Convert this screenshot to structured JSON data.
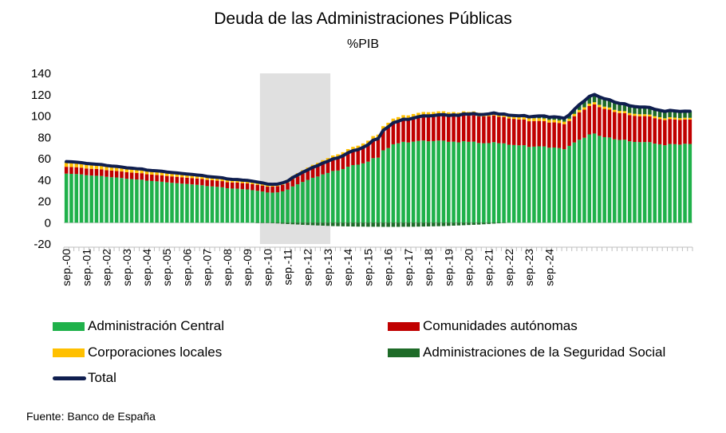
{
  "chart_data": {
    "type": "bar",
    "subtype": "stacked-bar-with-line",
    "title": "Deuda de las Administraciones Públicas",
    "subtitle": "%PIB",
    "ylim": [
      -20,
      140
    ],
    "yticks": [
      -20,
      0,
      20,
      40,
      60,
      80,
      100,
      120,
      140
    ],
    "x_tick_labels": [
      "sep.-00",
      "sep.-01",
      "sep.-02",
      "sep.-03",
      "sep.-04",
      "sep.-05",
      "sep.-06",
      "sep.-07",
      "sep.-08",
      "sep.-09",
      "sep.-10",
      "sep.-11",
      "sep.-12",
      "sep.-13",
      "sep.-14",
      "sep.-15",
      "sep.-16",
      "sep.-17",
      "sep.-18",
      "sep.-19",
      "sep.-20",
      "sep.-21",
      "sep.-22",
      "sep.-23",
      "sep.-24"
    ],
    "x_start": "2000-09",
    "frequency": "quarterly",
    "shaded_period": {
      "from": "2010-06",
      "to": "2013-09"
    },
    "legend_position": "bottom",
    "source": "Fuente: Banco de España",
    "colors": {
      "central": "#1fb14a",
      "ccaa": "#c00000",
      "local": "#ffc000",
      "ss": "#1e6b28",
      "total": "#0f1e4f",
      "shade": "#e0e0e0"
    },
    "series": [
      {
        "name": "Administración Central",
        "key": "central",
        "values": [
          46.0,
          45.8,
          45.6,
          45.3,
          44.5,
          44.2,
          44.0,
          43.8,
          43.0,
          42.6,
          42.4,
          41.9,
          41.2,
          40.9,
          40.5,
          40.3,
          39.4,
          39.1,
          38.8,
          38.4,
          37.8,
          37.4,
          37.0,
          36.6,
          36.3,
          35.9,
          35.5,
          35.1,
          34.3,
          34.0,
          33.6,
          33.2,
          32.3,
          32.0,
          31.9,
          31.4,
          31.2,
          30.5,
          29.9,
          29.2,
          28.3,
          28.2,
          28.4,
          29.4,
          31.0,
          34.0,
          36.0,
          38.2,
          40.1,
          42.1,
          43.3,
          45.3,
          46.6,
          48.5,
          48.9,
          50.3,
          52.5,
          54.0,
          54.4,
          55.6,
          57.2,
          60.5,
          61.0,
          67.8,
          70.0,
          73.5,
          74.4,
          75.8,
          75.2,
          76.0,
          76.7,
          77.0,
          76.3,
          76.5,
          77.0,
          76.9,
          75.8,
          76.0,
          75.3,
          76.4,
          75.8,
          76.0,
          74.7,
          74.5,
          74.6,
          75.5,
          74.5,
          74.4,
          73.1,
          72.8,
          72.5,
          72.6,
          71.0,
          71.3,
          71.6,
          71.5,
          70.3,
          70.5,
          70.0,
          68.9,
          72.0,
          75.2,
          77.8,
          79.6,
          82.8,
          83.6,
          81.4,
          80.2,
          79.9,
          78.2,
          77.6,
          77.8,
          76.3,
          75.7,
          75.5,
          75.6,
          75.5,
          74.1,
          73.5,
          72.6,
          73.8,
          73.6,
          73.2,
          74.0,
          73.8
        ]
      },
      {
        "name": "Comunidades autónomas",
        "key": "ccaa",
        "values": [
          6.4,
          6.4,
          6.4,
          6.3,
          6.3,
          6.3,
          6.3,
          6.2,
          6.2,
          6.2,
          6.1,
          6.1,
          6.1,
          6.1,
          6.1,
          6.1,
          6.0,
          6.0,
          6.0,
          6.0,
          6.0,
          6.0,
          6.0,
          6.0,
          5.9,
          5.9,
          5.9,
          5.9,
          5.8,
          5.8,
          5.8,
          5.8,
          5.7,
          5.7,
          5.7,
          5.7,
          5.6,
          5.6,
          5.6,
          5.6,
          5.5,
          5.6,
          5.8,
          6.1,
          6.5,
          6.9,
          7.4,
          8.0,
          8.5,
          9.0,
          9.6,
          10.1,
          10.6,
          11.1,
          11.7,
          12.2,
          12.8,
          13.4,
          14.0,
          14.8,
          15.7,
          16.6,
          17.5,
          18.5,
          19.4,
          19.8,
          20.2,
          20.6,
          21.0,
          21.5,
          22.0,
          22.5,
          23.1,
          23.1,
          23.3,
          23.5,
          23.7,
          23.9,
          24.1,
          24.3,
          24.5,
          24.7,
          24.9,
          25.1,
          25.3,
          25.1,
          24.8,
          24.7,
          24.6,
          24.5,
          24.3,
          24.2,
          24.1,
          24.0,
          23.8,
          23.7,
          23.6,
          23.6,
          23.5,
          23.5,
          23.3,
          24.6,
          25.7,
          26.4,
          26.6,
          27.3,
          27.0,
          26.5,
          26.1,
          25.6,
          25.2,
          24.9,
          24.6,
          24.5,
          24.3,
          24.3,
          24.1,
          23.9,
          23.6,
          23.6,
          23.4,
          23.2,
          23.1,
          22.8,
          22.9
        ]
      },
      {
        "name": "Corporaciones locales",
        "key": "local",
        "values": [
          3.7,
          3.7,
          3.6,
          3.6,
          3.6,
          3.6,
          3.5,
          3.5,
          3.5,
          3.4,
          3.4,
          3.4,
          3.3,
          3.3,
          3.3,
          3.3,
          3.2,
          3.2,
          3.2,
          3.2,
          3.2,
          3.1,
          3.1,
          3.1,
          3.0,
          3.0,
          3.0,
          3.0,
          3.0,
          2.9,
          2.9,
          2.9,
          2.9,
          2.8,
          2.8,
          2.8,
          2.8,
          2.8,
          2.7,
          2.7,
          2.7,
          2.7,
          2.7,
          2.8,
          2.8,
          2.9,
          3.0,
          3.1,
          3.1,
          3.2,
          3.3,
          3.3,
          3.4,
          3.4,
          3.5,
          3.6,
          3.7,
          3.7,
          3.8,
          3.9,
          4.0,
          4.1,
          4.1,
          4.2,
          4.3,
          4.3,
          4.4,
          4.4,
          4.4,
          4.4,
          4.3,
          4.3,
          4.2,
          4.2,
          4.1,
          4.1,
          4.0,
          3.9,
          3.8,
          3.7,
          3.6,
          3.6,
          3.5,
          3.4,
          3.3,
          3.2,
          3.1,
          3.1,
          3.0,
          2.9,
          2.8,
          2.7,
          2.7,
          2.6,
          2.5,
          2.5,
          2.4,
          2.4,
          2.3,
          2.3,
          2.2,
          2.2,
          2.2,
          2.2,
          2.2,
          2.1,
          2.1,
          2.1,
          2.0,
          2.0,
          2.0,
          1.9,
          1.9,
          1.9,
          1.9,
          1.8,
          1.8,
          1.8,
          1.8,
          1.7,
          1.7,
          1.7,
          1.7,
          1.6,
          1.6
        ]
      },
      {
        "name": "Administraciones de la Seguridad Social",
        "key": "ss",
        "values": [
          1.2,
          1.2,
          1.1,
          1.1,
          1.1,
          1.0,
          1.0,
          1.0,
          0.9,
          0.9,
          0.9,
          0.8,
          0.8,
          0.8,
          0.7,
          0.7,
          0.7,
          0.6,
          0.6,
          0.6,
          0.5,
          0.5,
          0.5,
          0.4,
          0.4,
          0.4,
          0.3,
          0.3,
          0.3,
          0.2,
          0.2,
          0.2,
          0.1,
          0.1,
          0.1,
          0.0,
          0.0,
          0.0,
          -0.1,
          -0.2,
          -0.3,
          -0.5,
          -0.7,
          -1.0,
          -1.3,
          -1.5,
          -1.7,
          -2.0,
          -2.2,
          -2.4,
          -2.6,
          -2.8,
          -3.0,
          -3.2,
          -3.3,
          -3.4,
          -3.5,
          -3.6,
          -3.7,
          -3.7,
          -3.8,
          -3.8,
          -3.8,
          -3.9,
          -3.9,
          -3.9,
          -3.9,
          -3.8,
          -3.8,
          -3.8,
          -3.7,
          -3.6,
          -3.5,
          -3.4,
          -3.3,
          -3.2,
          -3.0,
          -2.8,
          -2.6,
          -2.4,
          -2.2,
          -2.0,
          -1.8,
          -1.5,
          -1.2,
          -0.9,
          -0.6,
          -0.3,
          0.0,
          0.3,
          0.6,
          1.0,
          1.4,
          1.8,
          2.2,
          2.4,
          2.6,
          2.8,
          3.0,
          3.2,
          3.6,
          4.2,
          5.0,
          6.0,
          6.8,
          7.2,
          7.4,
          7.4,
          7.3,
          7.2,
          7.0,
          6.9,
          6.8,
          6.8,
          6.7,
          6.7,
          6.6,
          6.5,
          6.5,
          6.4,
          6.4,
          6.3,
          6.3,
          6.2,
          6.2
        ]
      }
    ],
    "total": {
      "name": "Total",
      "values": [
        57.3,
        57.1,
        56.7,
        56.3,
        55.5,
        55.1,
        54.8,
        54.5,
        53.6,
        53.1,
        52.8,
        52.2,
        51.4,
        51.1,
        50.6,
        50.4,
        49.3,
        48.9,
        48.6,
        48.2,
        47.5,
        47.0,
        46.6,
        46.1,
        45.6,
        45.2,
        44.7,
        44.3,
        43.4,
        42.9,
        42.5,
        42.1,
        41.0,
        40.6,
        40.5,
        39.9,
        39.6,
        38.9,
        38.1,
        37.3,
        36.2,
        36.0,
        36.2,
        37.3,
        39.0,
        42.3,
        44.7,
        47.3,
        49.5,
        51.9,
        53.6,
        55.9,
        57.6,
        59.8,
        60.8,
        62.7,
        65.5,
        67.5,
        68.5,
        70.6,
        73.1,
        77.4,
        78.8,
        86.6,
        89.8,
        93.7,
        95.1,
        97.0,
        96.8,
        98.1,
        99.3,
        100.2,
        100.1,
        100.4,
        101.1,
        101.3,
        100.5,
        101.0,
        100.6,
        102.0,
        101.7,
        102.3,
        101.3,
        101.5,
        102.0,
        102.9,
        101.8,
        101.9,
        100.7,
        100.5,
        100.2,
        100.5,
        99.2,
        99.7,
        100.1,
        100.1,
        98.9,
        99.3,
        98.8,
        97.9,
        101.1,
        106.2,
        110.7,
        114.2,
        118.4,
        120.2,
        117.9,
        116.2,
        115.3,
        113.0,
        111.8,
        111.5,
        109.6,
        108.9,
        108.4,
        108.4,
        108.0,
        106.3,
        105.4,
        104.3,
        105.3,
        104.8,
        104.3,
        104.6,
        104.5
      ]
    }
  },
  "legend": [
    {
      "key": "central",
      "label": "Administración Central"
    },
    {
      "key": "ccaa",
      "label": "Comunidades autónomas"
    },
    {
      "key": "local",
      "label": "Corporaciones locales"
    },
    {
      "key": "ss",
      "label": "Administraciones de la Seguridad Social"
    },
    {
      "key": "total",
      "label": "Total"
    }
  ]
}
